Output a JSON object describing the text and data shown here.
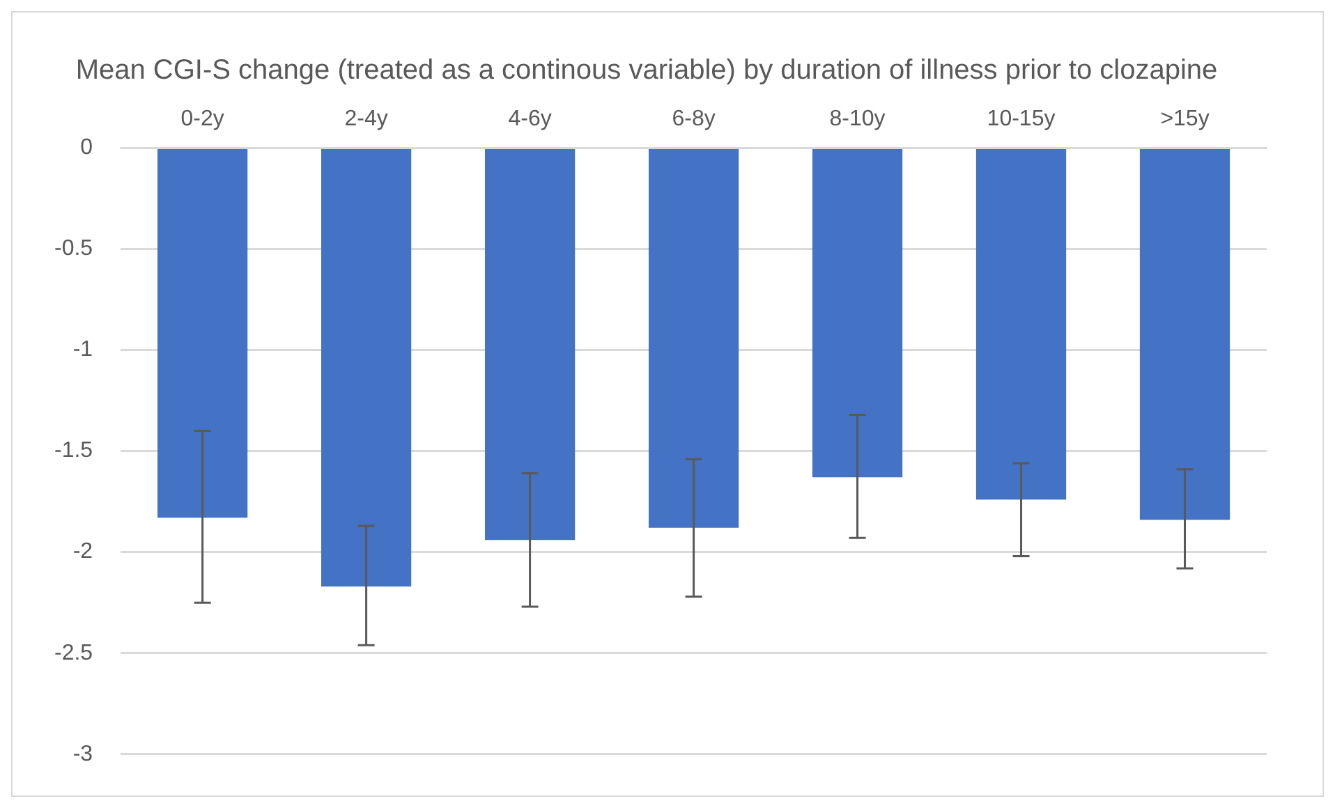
{
  "chart_data": {
    "type": "bar",
    "title": "Mean CGI-S change (treated as a continous variable) by duration of illness prior to clozapine",
    "categories": [
      "0-2y",
      "2-4y",
      "4-6y",
      "6-8y",
      "8-10y",
      "10-15y",
      ">15y"
    ],
    "values": [
      -1.83,
      -2.17,
      -1.94,
      -1.88,
      -1.63,
      -1.74,
      -1.84
    ],
    "errors": [
      [
        -2.25,
        -1.4
      ],
      [
        -2.46,
        -1.87
      ],
      [
        -2.27,
        -1.61
      ],
      [
        -2.22,
        -1.54
      ],
      [
        -1.93,
        -1.32
      ],
      [
        -2.02,
        -1.56
      ],
      [
        -2.08,
        -1.59
      ]
    ],
    "color": "#4472c4",
    "ylim": [
      -3,
      0
    ],
    "yticks": [
      0,
      -0.5,
      -1,
      -1.5,
      -2,
      -2.5,
      -3
    ],
    "grid": "y",
    "legend": false
  }
}
